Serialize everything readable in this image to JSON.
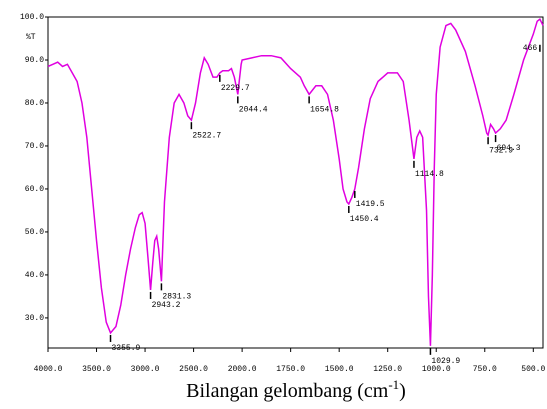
{
  "chart_data": {
    "type": "line",
    "ylabel": "%T",
    "xlabel": "Bilangan gelombang (cm",
    "xlabel_sup": "-1",
    "xlabel_end": ")",
    "xlim": [
      4000,
      450
    ],
    "x_break": 2000,
    "x_break_ratio": 2,
    "ylim": [
      23,
      100
    ],
    "xticks": [
      {
        "value": 4000,
        "label": "4000.0"
      },
      {
        "value": 3500,
        "label": "3500.0"
      },
      {
        "value": 3000,
        "label": "3000.0"
      },
      {
        "value": 2500,
        "label": "2500.0"
      },
      {
        "value": 2000,
        "label": "2000.0"
      },
      {
        "value": 1750,
        "label": "1750.0"
      },
      {
        "value": 1500,
        "label": "1500.0"
      },
      {
        "value": 1250,
        "label": "1250.0"
      },
      {
        "value": 1000,
        "label": "1000.0"
      },
      {
        "value": 750,
        "label": "750.0"
      },
      {
        "value": 500,
        "label": "500.0"
      }
    ],
    "yticks": [
      {
        "value": 30,
        "label": "30.0"
      },
      {
        "value": 40,
        "label": "40.0"
      },
      {
        "value": 50,
        "label": "50.0"
      },
      {
        "value": 60,
        "label": "60.0"
      },
      {
        "value": 70,
        "label": "70.0"
      },
      {
        "value": 80,
        "label": "80.0"
      },
      {
        "value": 90,
        "label": "90.0"
      },
      {
        "value": 100,
        "label": "100.0"
      }
    ],
    "series": [
      {
        "color": "#e000e0",
        "x": [
          4000,
          3950,
          3900,
          3850,
          3800,
          3750,
          3700,
          3650,
          3600,
          3550,
          3500,
          3450,
          3400,
          3355.9,
          3300,
          3250,
          3200,
          3150,
          3100,
          3060,
          3030,
          3000,
          2970,
          2943.2,
          2920,
          2900,
          2880,
          2860,
          2831.3,
          2800,
          2750,
          2700,
          2650,
          2600,
          2560,
          2522.7,
          2480,
          2430,
          2390,
          2350,
          2300,
          2260,
          2229.7,
          2200,
          2170,
          2140,
          2110,
          2080,
          2044.4,
          2030,
          2010,
          2000,
          1950,
          1900,
          1850,
          1800,
          1750,
          1700,
          1680,
          1654.8,
          1620,
          1590,
          1560,
          1530,
          1500,
          1480,
          1460,
          1450.4,
          1435,
          1419.5,
          1400,
          1370,
          1340,
          1300,
          1250,
          1200,
          1170,
          1140,
          1114.8,
          1100,
          1085,
          1070,
          1050,
          1040,
          1029.9,
          1020,
          1010,
          1000,
          980,
          950,
          925,
          900,
          850,
          800,
          760,
          740,
          732.9,
          720,
          705,
          694.3,
          670,
          640,
          600,
          550,
          500,
          480,
          466,
          455,
          450
        ],
        "values": [
          88.5,
          89,
          89.5,
          88.5,
          89,
          87,
          85,
          80,
          72,
          60,
          48,
          37,
          29,
          26.5,
          28,
          33,
          40,
          46,
          51,
          54,
          54.5,
          52,
          44,
          36.5,
          43,
          48,
          49,
          46,
          38.5,
          57,
          72,
          80,
          82,
          80,
          77,
          76,
          80,
          87,
          90.5,
          89,
          86,
          86,
          87,
          87.5,
          87.5,
          87.5,
          88,
          86,
          82,
          85,
          89,
          90,
          90.5,
          91,
          91,
          90.5,
          88,
          86,
          84,
          82,
          84,
          84,
          82,
          76,
          67,
          60,
          57,
          56.5,
          58,
          60,
          65,
          74,
          81,
          85,
          87,
          87,
          85,
          76,
          67,
          72,
          73.5,
          72,
          55,
          35,
          23.5,
          40,
          65,
          82,
          93,
          98,
          98.5,
          97,
          92,
          84,
          77,
          73,
          72.5,
          75,
          74,
          73,
          74,
          76,
          82,
          90,
          96,
          99,
          99.5,
          98.5,
          98
        ]
      }
    ],
    "peaks": [
      {
        "x": 3355.9,
        "y": 26.5
      },
      {
        "x": 2943.2,
        "y": 36.5
      },
      {
        "x": 2831.3,
        "y": 38.5
      },
      {
        "x": 2522.7,
        "y": 76
      },
      {
        "x": 2229.7,
        "y": 87
      },
      {
        "x": 2044.4,
        "y": 82
      },
      {
        "x": 1654.8,
        "y": 82
      },
      {
        "x": 1450.4,
        "y": 56.5
      },
      {
        "x": 1419.5,
        "y": 60
      },
      {
        "x": 1114.8,
        "y": 67
      },
      {
        "x": 1029.9,
        "y": 23.5
      },
      {
        "x": 732.9,
        "y": 72.5
      },
      {
        "x": 694.3,
        "y": 73
      },
      {
        "x": 466,
        "y": 94,
        "label": "466."
      }
    ]
  }
}
